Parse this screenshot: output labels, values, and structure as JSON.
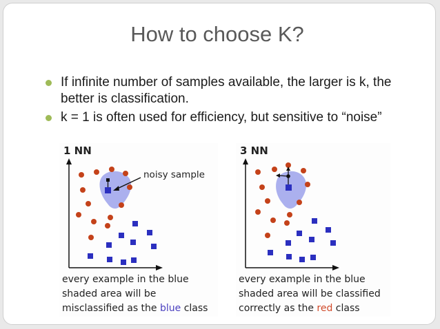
{
  "slide": {
    "title": "How to choose K?",
    "bullets": [
      "If infinite number of samples available, the larger is k, the better is classification.",
      "k = 1 is often used for efficiency, but sensitive to “noise”"
    ]
  },
  "colors": {
    "red_class": "#c4421a",
    "blue_class": "#2b2fbf",
    "shaded_region": "#8f95e8",
    "bullet_marker": "#9fbb58",
    "blue_word": "#4a3fbf",
    "red_word": "#d04a2a"
  },
  "panels": [
    {
      "title": "1 NN",
      "annotation": "noisy sample",
      "caption_before": "every example in the blue shaded  area will be misclassified as the ",
      "caption_highlight": "blue",
      "caption_after": " class"
    },
    {
      "title": "3 NN",
      "caption_before": "every example in the blue shaded  area will be classified correctly as the ",
      "caption_highlight": "red",
      "caption_after": " class"
    }
  ]
}
